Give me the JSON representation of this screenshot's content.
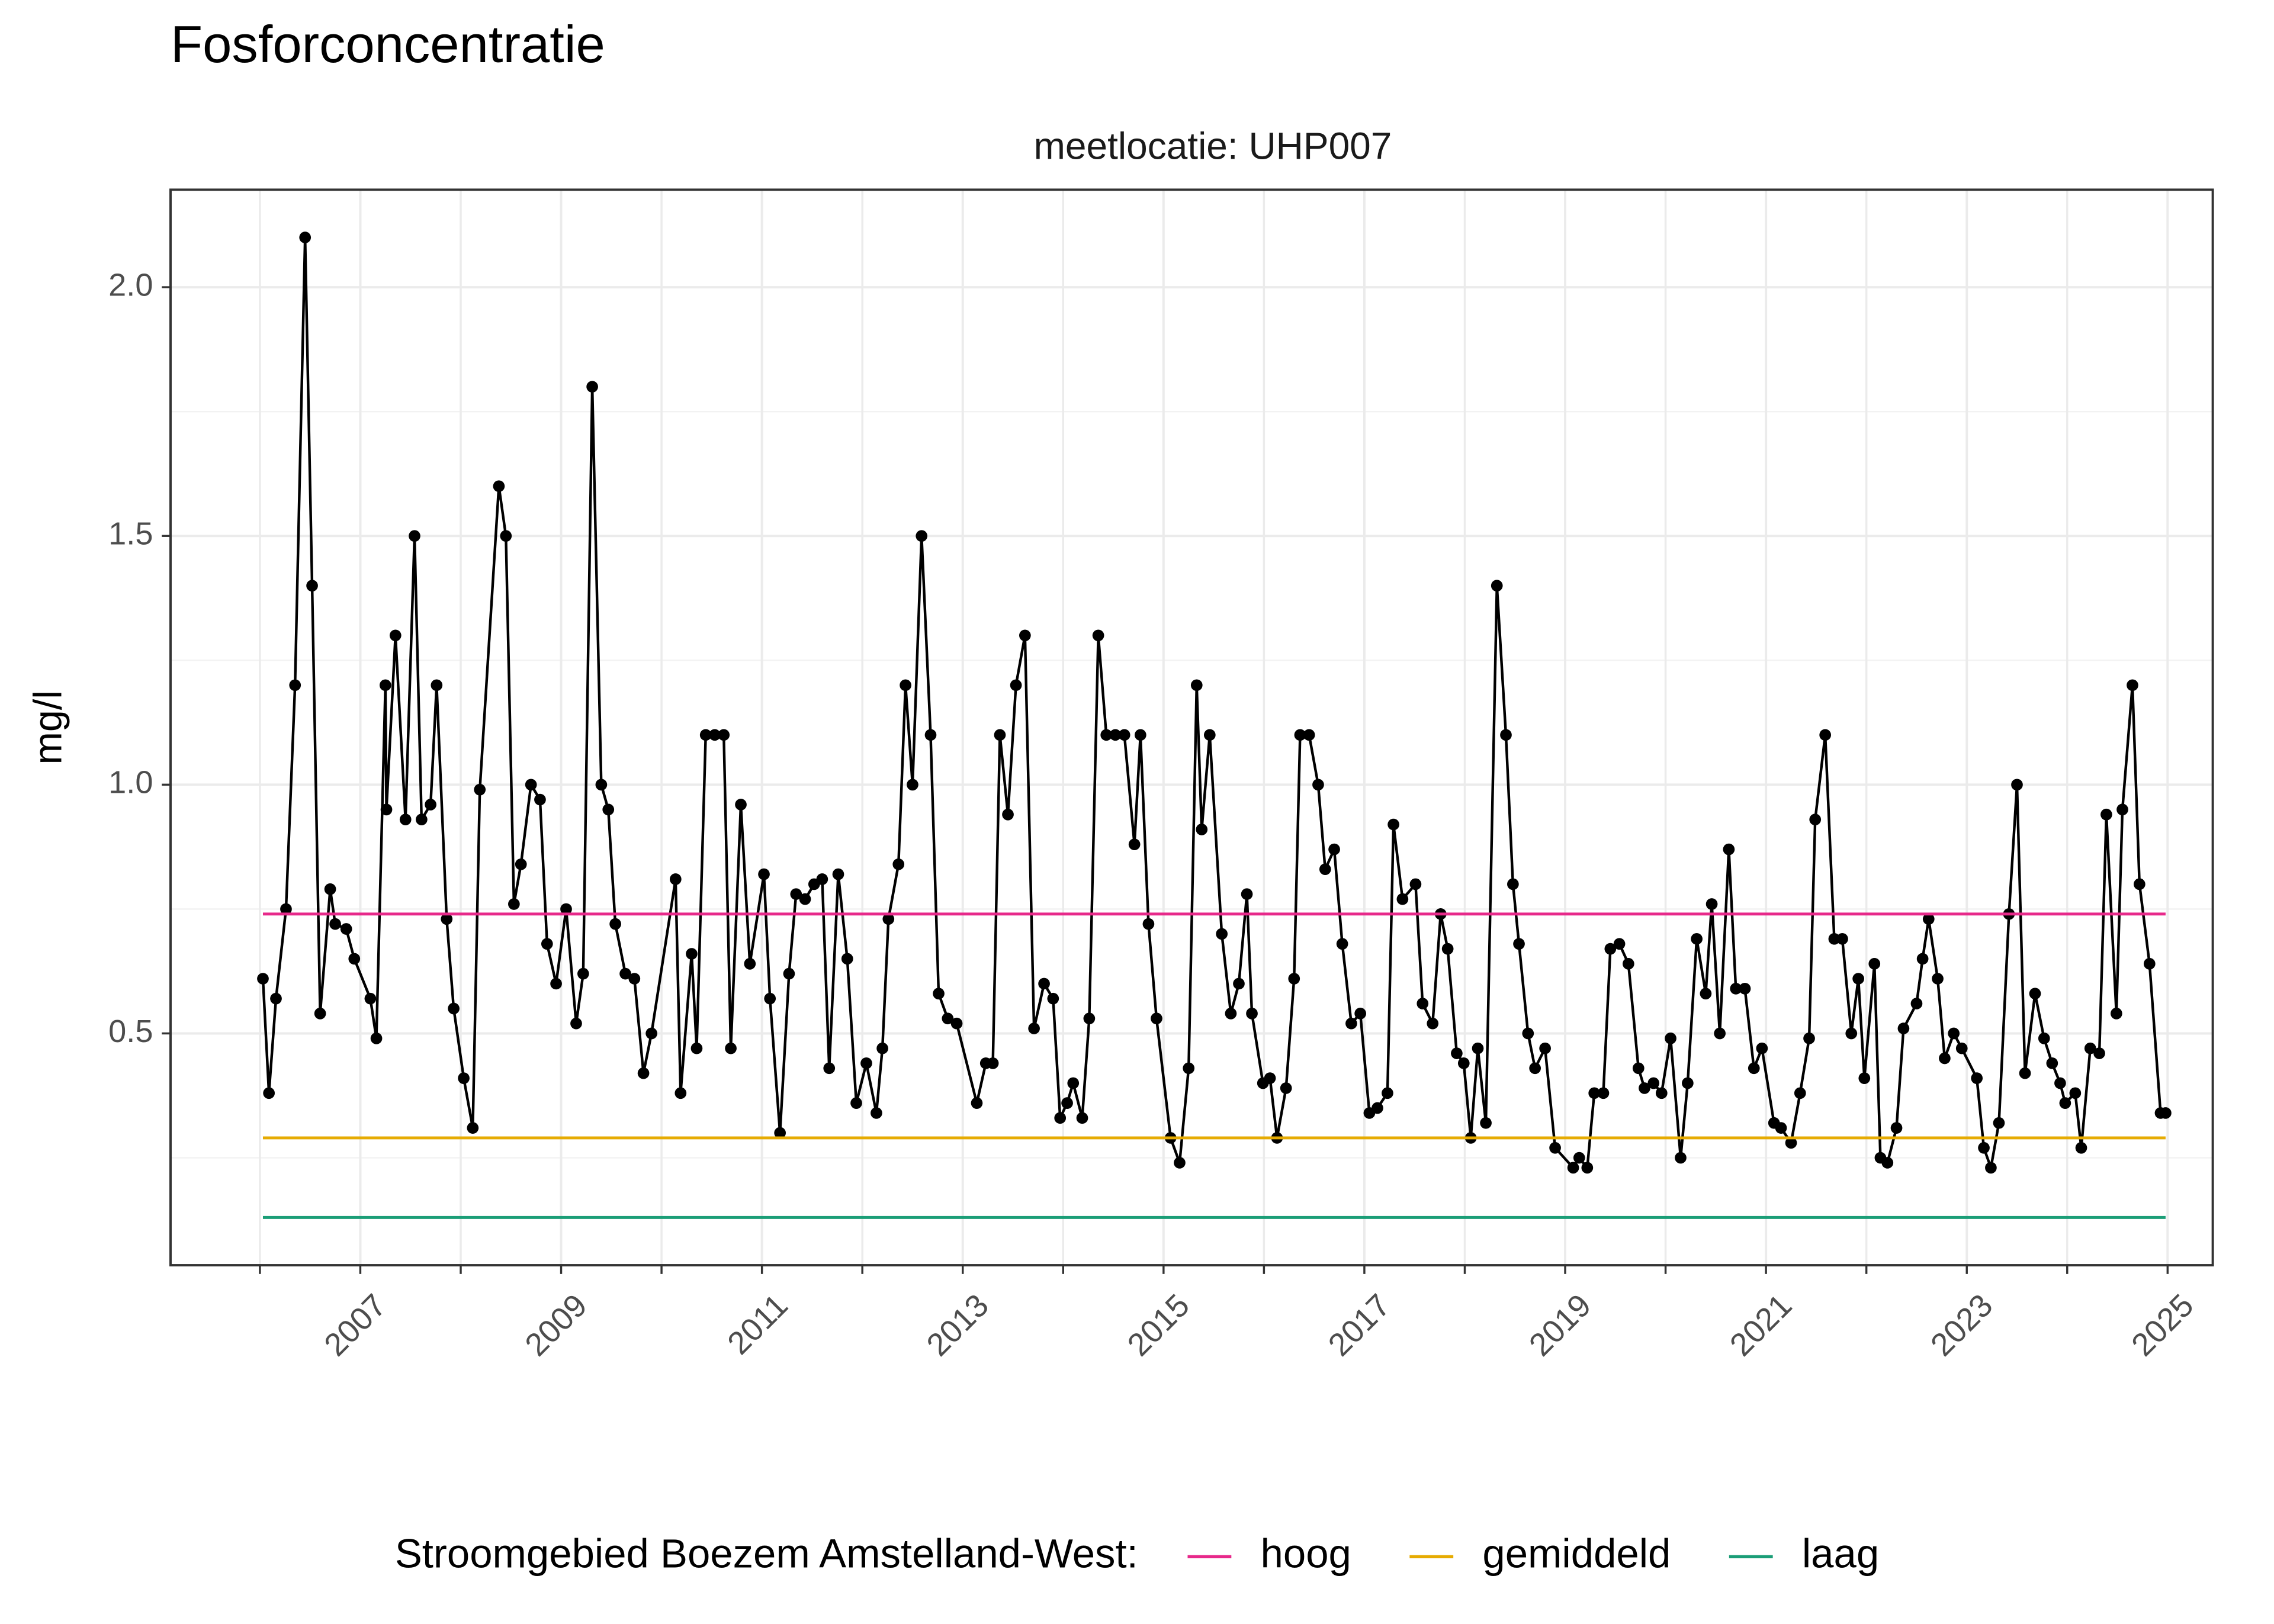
{
  "chart_data": {
    "type": "line",
    "title": "Fosforconcentratie",
    "subtitle": "meetlocatie: UHP007",
    "ylabel": "mg/l",
    "legend_title": "Stroomgebied Boezem Amstelland-West:",
    "legend": "bottom",
    "grid": true,
    "xlim": [
      2005.11,
      2025.45
    ],
    "xticks": [
      2007,
      2009,
      2011,
      2013,
      2015,
      2017,
      2019,
      2021,
      2023,
      2025
    ],
    "xminor_ticks": [
      2006,
      2008,
      2010,
      2012,
      2014,
      2016,
      2018,
      2020,
      2022,
      2024
    ],
    "ylim": [
      0.034,
      2.196
    ],
    "yticks": [
      0.5,
      {
        "value": 1,
        "label": "1.0"
      },
      1.5,
      {
        "value": 2,
        "label": "2.0"
      }
    ],
    "yminor_ticks": [
      0.25,
      0.75,
      1.25,
      1.75
    ],
    "series": [
      {
        "color": "#000000",
        "markers": true,
        "x": [
          2006.03,
          2006.09,
          2006.16,
          2006.26,
          2006.35,
          2006.45,
          2006.52,
          2006.6,
          2006.7,
          2006.75,
          2006.86,
          2006.94,
          2007.1,
          2007.16,
          2007.25,
          2007.26,
          2007.35,
          2007.45,
          2007.54,
          2007.61,
          2007.7,
          2007.76,
          2007.86,
          2007.93,
          2008.03,
          2008.12,
          2008.19,
          2008.38,
          2008.45,
          2008.53,
          2008.6,
          2008.7,
          2008.79,
          2008.86,
          2008.95,
          2009.05,
          2009.15,
          2009.22,
          2009.31,
          2009.4,
          2009.47,
          2009.54,
          2009.64,
          2009.73,
          2009.82,
          2009.9,
          2010.14,
          2010.19,
          2010.3,
          2010.35,
          2010.44,
          2010.53,
          2010.62,
          2010.69,
          2010.79,
          2010.88,
          2011.02,
          2011.08,
          2011.18,
          2011.27,
          2011.34,
          2011.43,
          2011.52,
          2011.6,
          2011.67,
          2011.76,
          2011.85,
          2011.94,
          2012.04,
          2012.14,
          2012.2,
          2012.26,
          2012.36,
          2012.43,
          2012.5,
          2012.59,
          2012.68,
          2012.76,
          2012.85,
          2012.94,
          2013.14,
          2013.23,
          2013.3,
          2013.37,
          2013.45,
          2013.53,
          2013.62,
          2013.71,
          2013.81,
          2013.9,
          2013.97,
          2014.04,
          2014.1,
          2014.19,
          2014.26,
          2014.35,
          2014.43,
          2014.52,
          2014.61,
          2014.71,
          2014.77,
          2014.85,
          2014.93,
          2015.07,
          2015.16,
          2015.25,
          2015.33,
          2015.38,
          2015.46,
          2015.58,
          2015.67,
          2015.75,
          2015.83,
          2015.88,
          2015.99,
          2016.06,
          2016.13,
          2016.22,
          2016.3,
          2016.36,
          2016.45,
          2016.54,
          2016.61,
          2016.7,
          2016.78,
          2016.87,
          2016.96,
          2017.05,
          2017.13,
          2017.23,
          2017.29,
          2017.38,
          2017.51,
          2017.58,
          2017.68,
          2017.76,
          2017.83,
          2017.92,
          2017.99,
          2018.06,
          2018.13,
          2018.21,
          2018.32,
          2018.41,
          2018.48,
          2018.54,
          2018.63,
          2018.7,
          2018.8,
          2018.9,
          2019.08,
          2019.14,
          2019.22,
          2019.29,
          2019.38,
          2019.45,
          2019.54,
          2019.63,
          2019.73,
          2019.79,
          2019.88,
          2019.96,
          2020.05,
          2020.15,
          2020.22,
          2020.31,
          2020.4,
          2020.46,
          2020.54,
          2020.63,
          2020.7,
          2020.79,
          2020.88,
          2020.96,
          2021.08,
          2021.15,
          2021.25,
          2021.34,
          2021.43,
          2021.49,
          2021.59,
          2021.68,
          2021.76,
          2021.85,
          2021.92,
          2021.98,
          2022.08,
          2022.14,
          2022.21,
          2022.3,
          2022.37,
          2022.5,
          2022.56,
          2022.62,
          2022.71,
          2022.78,
          2022.87,
          2022.95,
          2023.1,
          2023.17,
          2023.24,
          2023.32,
          2023.42,
          2023.5,
          2023.58,
          2023.68,
          2023.77,
          2023.85,
          2023.93,
          2023.98,
          2024.08,
          2024.14,
          2024.23,
          2024.32,
          2024.39,
          2024.49,
          2024.55,
          2024.65,
          2024.72,
          2024.82,
          2024.93,
          2024.98
        ],
        "values": [
          0.61,
          0.38,
          0.57,
          0.75,
          1.2,
          2.1,
          1.4,
          0.54,
          0.79,
          0.72,
          0.71,
          0.65,
          0.57,
          0.49,
          1.2,
          0.95,
          1.3,
          0.93,
          1.5,
          0.93,
          0.96,
          1.2,
          0.73,
          0.55,
          0.41,
          0.31,
          0.99,
          1.6,
          1.5,
          0.76,
          0.84,
          1.0,
          0.97,
          0.68,
          0.6,
          0.75,
          0.52,
          0.62,
          1.8,
          1.0,
          0.95,
          0.72,
          0.62,
          0.61,
          0.42,
          0.5,
          0.81,
          0.38,
          0.66,
          0.47,
          1.1,
          1.1,
          1.1,
          0.47,
          0.96,
          0.64,
          0.82,
          0.57,
          0.3,
          0.62,
          0.78,
          0.77,
          0.8,
          0.81,
          0.43,
          0.82,
          0.65,
          0.36,
          0.44,
          0.34,
          0.47,
          0.73,
          0.84,
          1.2,
          1.0,
          1.5,
          1.1,
          0.58,
          0.53,
          0.52,
          0.36,
          0.44,
          0.44,
          1.1,
          0.94,
          1.2,
          1.3,
          0.51,
          0.6,
          0.57,
          0.33,
          0.36,
          0.4,
          0.33,
          0.53,
          1.3,
          1.1,
          1.1,
          1.1,
          0.88,
          1.1,
          0.72,
          0.53,
          0.29,
          0.24,
          0.43,
          1.2,
          0.91,
          1.1,
          0.7,
          0.54,
          0.6,
          0.78,
          0.54,
          0.4,
          0.41,
          0.29,
          0.39,
          0.61,
          1.1,
          1.1,
          1.0,
          0.83,
          0.87,
          0.68,
          0.52,
          0.54,
          0.34,
          0.35,
          0.38,
          0.92,
          0.77,
          0.8,
          0.56,
          0.52,
          0.74,
          0.67,
          0.46,
          0.44,
          0.29,
          0.47,
          0.32,
          1.4,
          1.1,
          0.8,
          0.68,
          0.5,
          0.43,
          0.47,
          0.27,
          0.23,
          0.25,
          0.23,
          0.38,
          0.38,
          0.67,
          0.68,
          0.64,
          0.43,
          0.39,
          0.4,
          0.38,
          0.49,
          0.25,
          0.4,
          0.69,
          0.58,
          0.76,
          0.5,
          0.87,
          0.59,
          0.59,
          0.43,
          0.47,
          0.32,
          0.31,
          0.28,
          0.38,
          0.49,
          0.93,
          1.1,
          0.69,
          0.69,
          0.5,
          0.61,
          0.41,
          0.64,
          0.25,
          0.24,
          0.31,
          0.51,
          0.56,
          0.65,
          0.73,
          0.61,
          0.45,
          0.5,
          0.47,
          0.41,
          0.27,
          0.23,
          0.32,
          0.74,
          1.0,
          0.42,
          0.58,
          0.49,
          0.44,
          0.4,
          0.36,
          0.38,
          0.27,
          0.47,
          0.46,
          0.94,
          0.54,
          0.95,
          1.2,
          0.8,
          0.64,
          0.34,
          0.34
        ]
      },
      {
        "name": "hoog",
        "color": "#e7298a",
        "x": [
          2006.03,
          2024.98
        ],
        "values": [
          0.74,
          0.74
        ]
      },
      {
        "name": "gemiddeld",
        "color": "#e6ab02",
        "x": [
          2006.03,
          2024.98
        ],
        "values": [
          0.29,
          0.29
        ]
      },
      {
        "name": "laag",
        "color": "#1b9e77",
        "x": [
          2006.03,
          2024.98
        ],
        "values": [
          0.13,
          0.13
        ]
      }
    ]
  }
}
